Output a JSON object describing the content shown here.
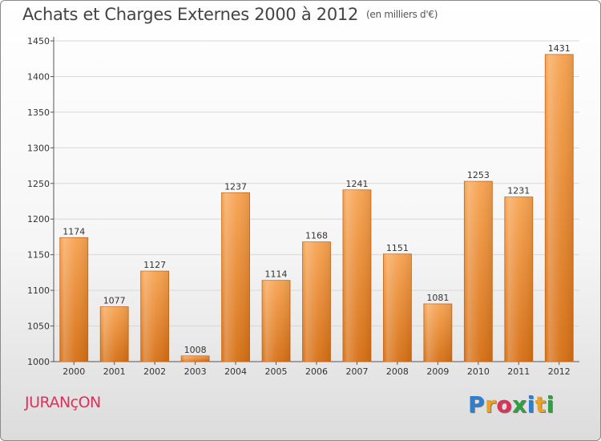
{
  "chart_data": {
    "type": "bar",
    "title": "Achats et Charges Externes 2000 à 2012",
    "subtitle": "(en milliers d'€)",
    "categories": [
      "2000",
      "2001",
      "2002",
      "2003",
      "2004",
      "2005",
      "2006",
      "2007",
      "2008",
      "2009",
      "2010",
      "2011",
      "2012"
    ],
    "values": [
      1174,
      1077,
      1127,
      1008,
      1237,
      1114,
      1168,
      1241,
      1151,
      1081,
      1253,
      1231,
      1431
    ],
    "ylim": [
      1000,
      1450
    ],
    "yticks": [
      1000,
      1050,
      1100,
      1150,
      1200,
      1250,
      1300,
      1350,
      1400,
      1450
    ],
    "grid": true,
    "bar_color": "#f0913c"
  },
  "footer": {
    "commune": "JURANçON",
    "brand_letters": [
      "P",
      "r",
      "o",
      "x",
      "i",
      "t",
      "i"
    ],
    "brand_colors": [
      "#2f7fd0",
      "#f0a020",
      "#e0305a",
      "#30a040",
      "#2f7fd0",
      "#f0a020",
      "#30a040"
    ]
  }
}
